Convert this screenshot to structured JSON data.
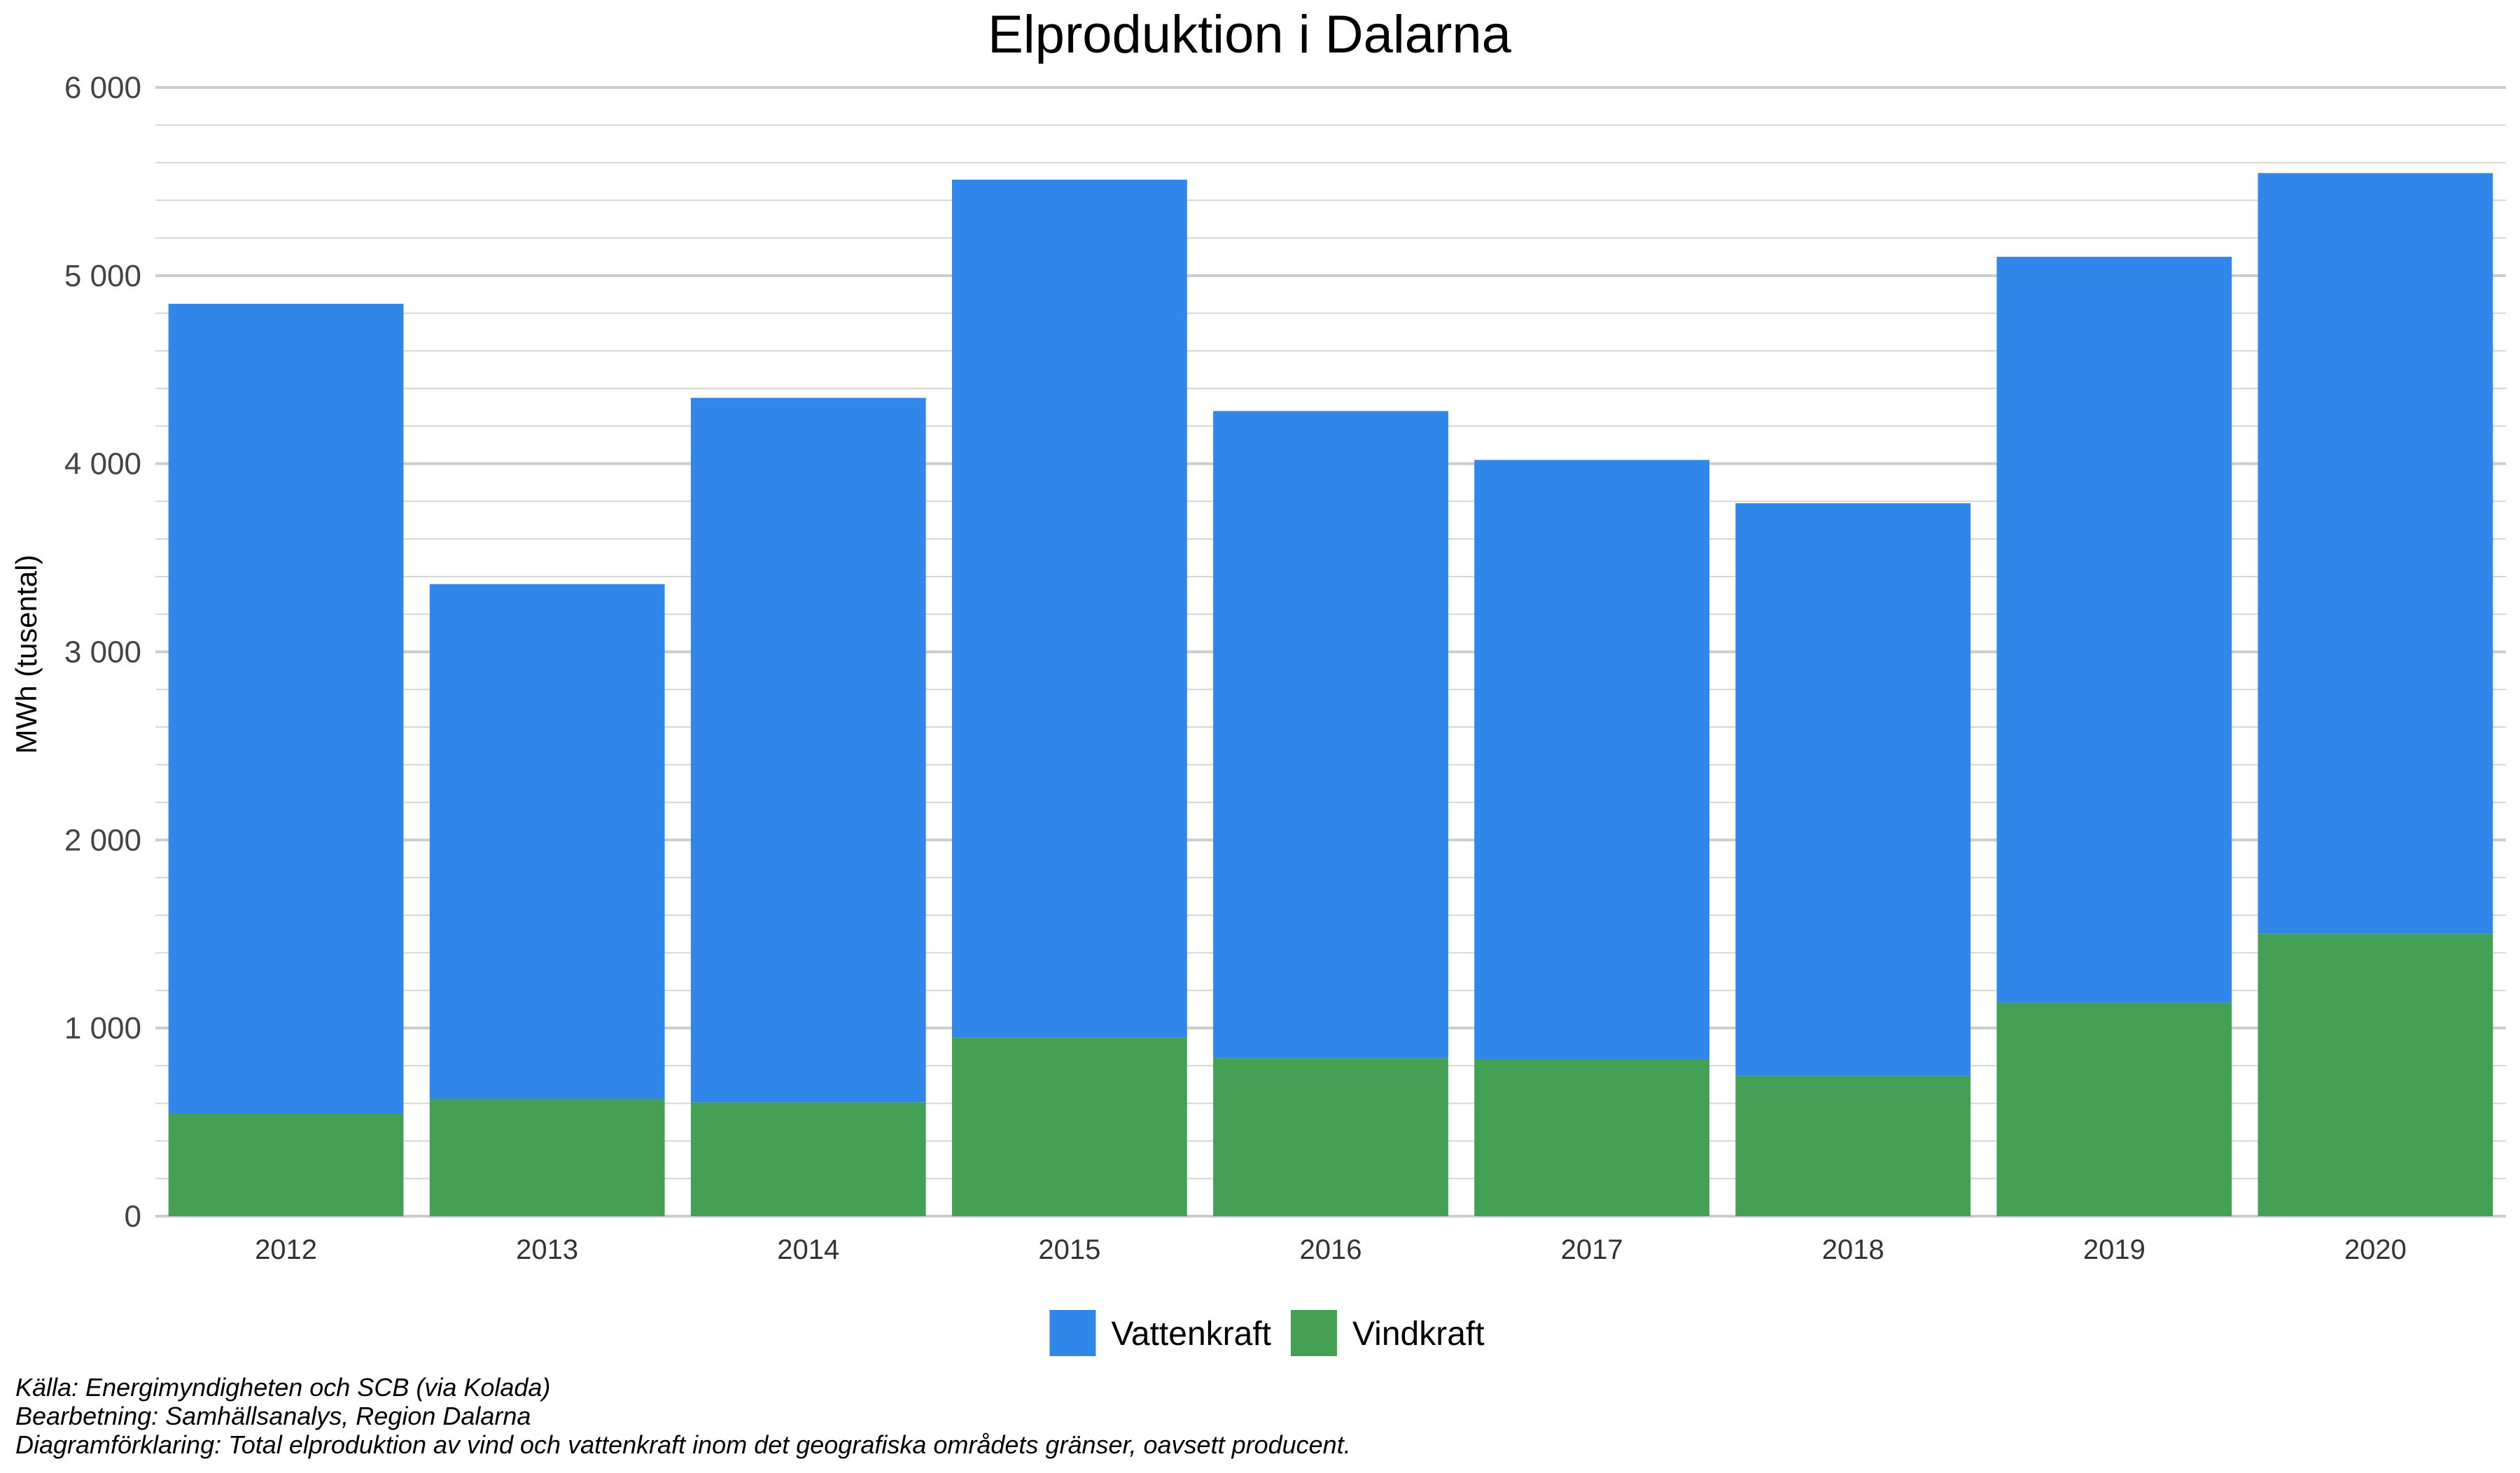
{
  "chart_data": {
    "type": "bar",
    "stacked": true,
    "title": "Elproduktion i Dalarna",
    "xlabel": "",
    "ylabel": "MWh (tusental)",
    "categories": [
      "2012",
      "2013",
      "2014",
      "2015",
      "2016",
      "2017",
      "2018",
      "2019",
      "2020"
    ],
    "series": [
      {
        "name": "Vindkraft",
        "color": "#43a055",
        "values": [
          545,
          625,
          605,
          950,
          840,
          835,
          745,
          1135,
          1500
        ]
      },
      {
        "name": "Vattenkraft",
        "color": "#3087e9",
        "values": [
          4305,
          2735,
          3745,
          4560,
          3440,
          3185,
          3045,
          3965,
          4045
        ]
      }
    ],
    "totals": [
      4850,
      3360,
      4350,
      5510,
      4280,
      4020,
      3790,
      5100,
      5545
    ],
    "ylim": [
      0,
      6000
    ],
    "yticks": [
      0,
      1000,
      2000,
      3000,
      4000,
      5000,
      6000
    ],
    "ytick_labels": [
      "0",
      "1 000",
      "2 000",
      "3 000",
      "4 000",
      "5 000",
      "6 000"
    ],
    "minor_step": 200,
    "grid": true,
    "legend": {
      "position": "bottom",
      "order": [
        "Vattenkraft",
        "Vindkraft"
      ]
    }
  },
  "caption": {
    "line1": "Källa: Energimyndigheten och SCB (via Kolada)",
    "line2": "Bearbetning: Samhällsanalys, Region Dalarna",
    "line3": "Diagramförklaring: Total elproduktion av vind och vattenkraft inom det geografiska områdets gränser, oavsett producent."
  }
}
